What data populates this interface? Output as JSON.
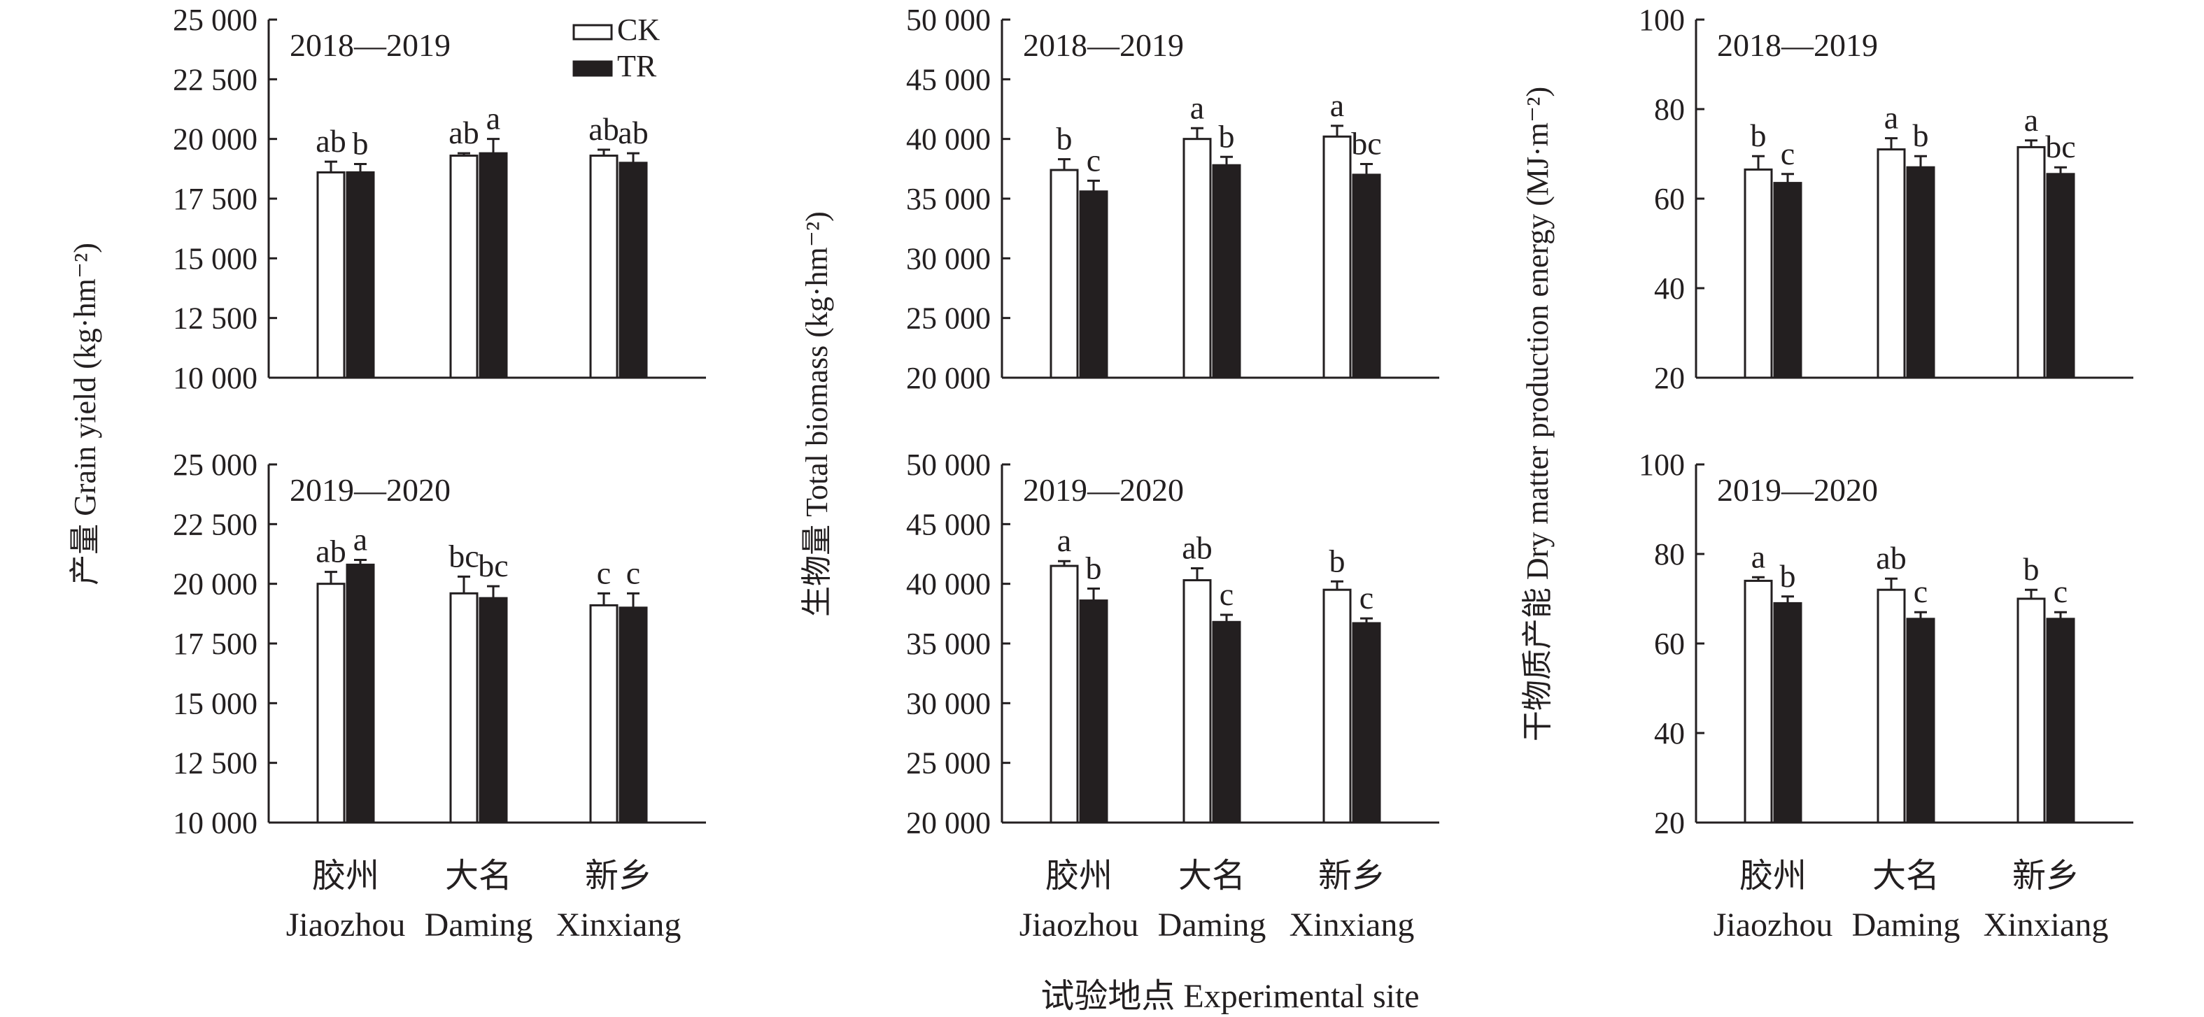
{
  "figure": {
    "x_axis_title": "试验地点 Experimental site",
    "legend": [
      {
        "name": "CK",
        "fill": "#ffffff"
      },
      {
        "name": "TR",
        "fill": "#231f20"
      }
    ]
  },
  "colors": {
    "ink": "#231f20",
    "ck": "#ffffff",
    "tr": "#231f20"
  },
  "chart_data": [
    {
      "type": "bar",
      "id": "yield-2018",
      "title": "2018—2019",
      "ylabel": "产量 Grain yield (kg·hm⁻²)",
      "ylim": [
        10000,
        25000
      ],
      "yticks": [
        10000,
        12500,
        15000,
        17500,
        20000,
        22500,
        25000
      ],
      "ytick_labels": [
        "10 000",
        "12 500",
        "15 000",
        "17 500",
        "20 000",
        "22 500",
        "25 000"
      ],
      "categories": [
        "胶州 Jiaozhou",
        "大名 Daming",
        "新乡 Xinxiang"
      ],
      "series": [
        {
          "name": "CK",
          "values": [
            18600,
            19300,
            19300
          ],
          "errors": [
            450,
            100,
            250
          ],
          "letters": [
            "ab",
            "ab",
            "ab"
          ]
        },
        {
          "name": "TR",
          "values": [
            18600,
            19400,
            19000
          ],
          "errors": [
            350,
            600,
            400
          ],
          "letters": [
            "b",
            "a",
            "ab"
          ]
        }
      ]
    },
    {
      "type": "bar",
      "id": "biomass-2018",
      "title": "2018—2019",
      "ylabel": "生物量 Total biomass (kg·hm⁻²)",
      "ylim": [
        20000,
        50000
      ],
      "yticks": [
        20000,
        25000,
        30000,
        35000,
        40000,
        45000,
        50000
      ],
      "ytick_labels": [
        "20 000",
        "25 000",
        "30 000",
        "35 000",
        "40 000",
        "45 000",
        "50 000"
      ],
      "categories": [
        "胶州 Jiaozhou",
        "大名 Daming",
        "新乡 Xinxiang"
      ],
      "series": [
        {
          "name": "CK",
          "values": [
            37400,
            40000,
            40200
          ],
          "errors": [
            900,
            900,
            900
          ],
          "letters": [
            "b",
            "a",
            "a"
          ]
        },
        {
          "name": "TR",
          "values": [
            35600,
            37800,
            37000
          ],
          "errors": [
            900,
            700,
            900
          ],
          "letters": [
            "c",
            "b",
            "bc"
          ]
        }
      ]
    },
    {
      "type": "bar",
      "id": "energy-2018",
      "title": "2018—2019",
      "ylabel": "干物质产能 Dry matter production energy (MJ·m⁻²)",
      "ylim": [
        20,
        100
      ],
      "yticks": [
        20,
        40,
        60,
        80,
        100
      ],
      "ytick_labels": [
        "20",
        "40",
        "60",
        "80",
        "100"
      ],
      "categories": [
        "胶州 Jiaozhou",
        "大名 Daming",
        "新乡 Xinxiang"
      ],
      "series": [
        {
          "name": "CK",
          "values": [
            66.5,
            71,
            71.5
          ],
          "errors": [
            3,
            2.5,
            1.5
          ],
          "letters": [
            "b",
            "a",
            "a"
          ]
        },
        {
          "name": "TR",
          "values": [
            63.5,
            67,
            65.5
          ],
          "errors": [
            2,
            2.5,
            1.5
          ],
          "letters": [
            "c",
            "b",
            "bc"
          ]
        }
      ]
    },
    {
      "type": "bar",
      "id": "yield-2019",
      "title": "2019—2020",
      "ylabel": "",
      "ylim": [
        10000,
        25000
      ],
      "yticks": [
        10000,
        12500,
        15000,
        17500,
        20000,
        22500,
        25000
      ],
      "ytick_labels": [
        "10 000",
        "12 500",
        "15 000",
        "17 500",
        "20 000",
        "22 500",
        "25 000"
      ],
      "categories": [
        "胶州 Jiaozhou",
        "大名 Daming",
        "新乡 Xinxiang"
      ],
      "series": [
        {
          "name": "CK",
          "values": [
            20000,
            19600,
            19100
          ],
          "errors": [
            500,
            700,
            500
          ],
          "letters": [
            "ab",
            "bc",
            "c"
          ]
        },
        {
          "name": "TR",
          "values": [
            20800,
            19400,
            19000
          ],
          "errors": [
            200,
            500,
            600
          ],
          "letters": [
            "a",
            "bc",
            "c"
          ]
        }
      ]
    },
    {
      "type": "bar",
      "id": "biomass-2019",
      "title": "2019—2020",
      "ylabel": "",
      "ylim": [
        20000,
        50000
      ],
      "yticks": [
        20000,
        25000,
        30000,
        35000,
        40000,
        45000,
        50000
      ],
      "ytick_labels": [
        "20 000",
        "25 000",
        "30 000",
        "35 000",
        "40 000",
        "45 000",
        "50 000"
      ],
      "categories": [
        "胶州 Jiaozhou",
        "大名 Daming",
        "新乡 Xinxiang"
      ],
      "series": [
        {
          "name": "CK",
          "values": [
            41500,
            40300,
            39500
          ],
          "errors": [
            400,
            1000,
            700
          ],
          "letters": [
            "a",
            "ab",
            "b"
          ]
        },
        {
          "name": "TR",
          "values": [
            38600,
            36800,
            36700
          ],
          "errors": [
            1000,
            600,
            400
          ],
          "letters": [
            "b",
            "c",
            "c"
          ]
        }
      ]
    },
    {
      "type": "bar",
      "id": "energy-2019",
      "title": "2019—2020",
      "ylabel": "",
      "ylim": [
        20,
        100
      ],
      "yticks": [
        20,
        40,
        60,
        80,
        100
      ],
      "ytick_labels": [
        "20",
        "40",
        "60",
        "80",
        "100"
      ],
      "categories": [
        "胶州 Jiaozhou",
        "大名 Daming",
        "新乡 Xinxiang"
      ],
      "series": [
        {
          "name": "CK",
          "values": [
            74,
            72,
            70
          ],
          "errors": [
            0.8,
            2.5,
            2
          ],
          "letters": [
            "a",
            "ab",
            "b"
          ]
        },
        {
          "name": "TR",
          "values": [
            69,
            65.5,
            65.5
          ],
          "errors": [
            1.5,
            1.5,
            1.5
          ],
          "letters": [
            "b",
            "c",
            "c"
          ]
        }
      ]
    }
  ]
}
